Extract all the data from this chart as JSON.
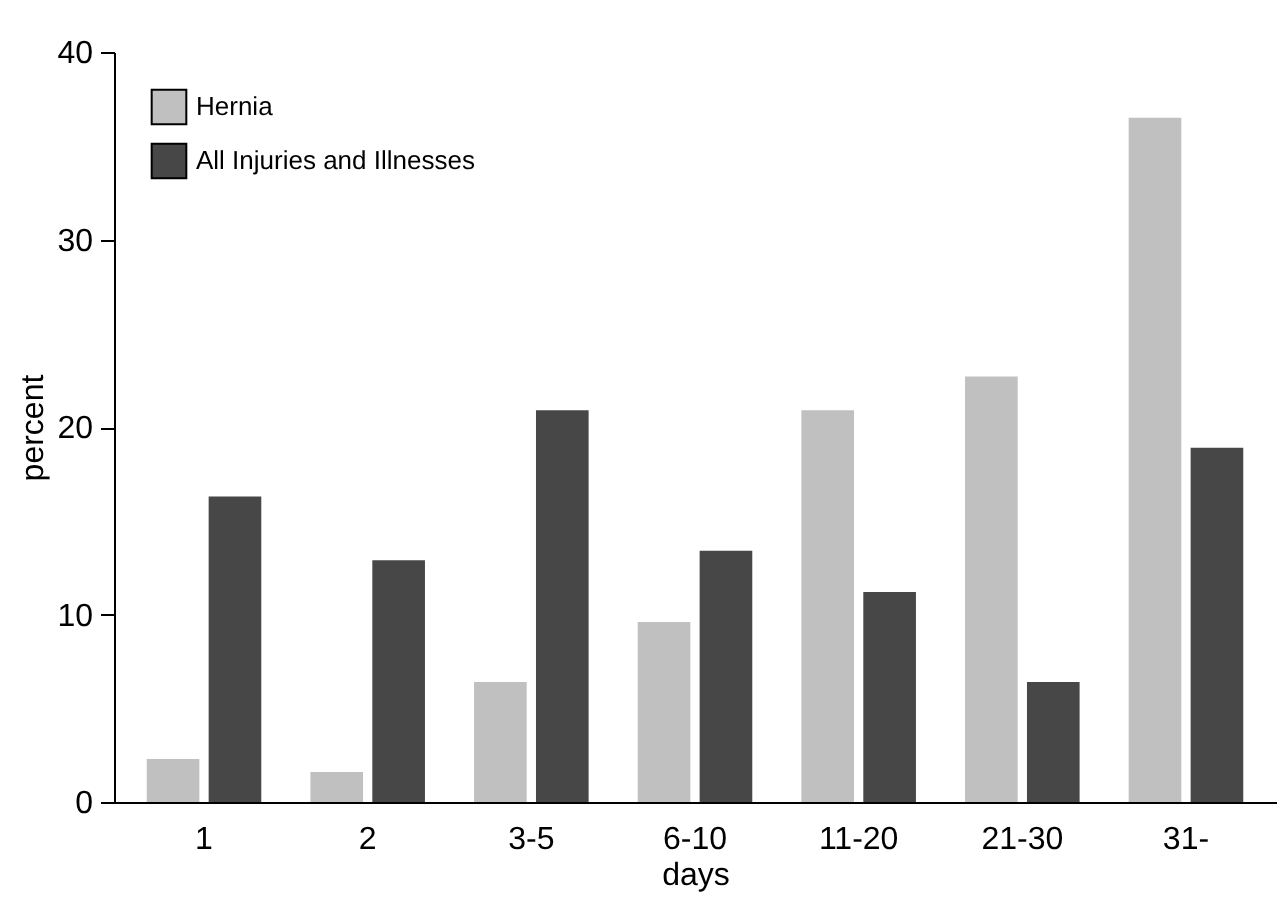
{
  "chart_data": {
    "type": "bar",
    "xlabel": "days",
    "ylabel": "percent",
    "categories": [
      "1",
      "2",
      "3-5",
      "6-10",
      "11-20",
      "21-30",
      "31-"
    ],
    "series": [
      {
        "name": "Hernia",
        "color": "#c0c0c0",
        "values": [
          2.3,
          1.6,
          6.4,
          9.6,
          20.9,
          22.7,
          36.5
        ]
      },
      {
        "name": "All Injuries and Illnesses",
        "color": "#474747",
        "values": [
          16.3,
          12.9,
          20.9,
          13.4,
          11.2,
          6.4,
          18.9
        ]
      }
    ],
    "ylim": [
      0,
      40
    ],
    "yticks": [
      0,
      10,
      20,
      30,
      40
    ],
    "grid": false,
    "legend": "top left"
  }
}
